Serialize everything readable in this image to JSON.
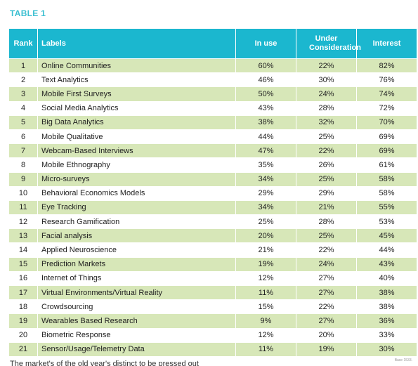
{
  "title": "TABLE 1",
  "footnote": "Base 1533.",
  "cutoff_text": "The market's of the old year's distinct to be pressed out",
  "colors": {
    "header": "#1bb7cf",
    "band": "#d7e7b8",
    "title": "#3bbfd1"
  },
  "chart_data": {
    "type": "table",
    "columns": [
      "Rank",
      "Labels",
      "In use",
      "Under Consideration",
      "Interest"
    ],
    "rows": [
      [
        "1",
        "Online Communities",
        "60%",
        "22%",
        "82%"
      ],
      [
        "2",
        "Text Analytics",
        "46%",
        "30%",
        "76%"
      ],
      [
        "3",
        "Mobile First Surveys",
        "50%",
        "24%",
        "74%"
      ],
      [
        "4",
        "Social Media Analytics",
        "43%",
        "28%",
        "72%"
      ],
      [
        "5",
        "Big Data Analytics",
        "38%",
        "32%",
        "70%"
      ],
      [
        "6",
        "Mobile Qualitative",
        "44%",
        "25%",
        "69%"
      ],
      [
        "7",
        "Webcam-Based Interviews",
        "47%",
        "22%",
        "69%"
      ],
      [
        "8",
        "Mobile Ethnography",
        "35%",
        "26%",
        "61%"
      ],
      [
        "9",
        "Micro-surveys",
        "34%",
        "25%",
        "58%"
      ],
      [
        "10",
        "Behavioral Economics Models",
        "29%",
        "29%",
        "58%"
      ],
      [
        "11",
        "Eye Tracking",
        "34%",
        "21%",
        "55%"
      ],
      [
        "12",
        "Research Gamification",
        "25%",
        "28%",
        "53%"
      ],
      [
        "13",
        "Facial analysis",
        "20%",
        "25%",
        "45%"
      ],
      [
        "14",
        "Applied Neuroscience",
        "21%",
        "22%",
        "44%"
      ],
      [
        "15",
        "Prediction Markets",
        "19%",
        "24%",
        "43%"
      ],
      [
        "16",
        "Internet of Things",
        "12%",
        "27%",
        "40%"
      ],
      [
        "17",
        "Virtual Environments/Virtual Reality",
        "11%",
        "27%",
        "38%"
      ],
      [
        "18",
        "Crowdsourcing",
        "15%",
        "22%",
        "38%"
      ],
      [
        "19",
        "Wearables Based Research",
        "9%",
        "27%",
        "36%"
      ],
      [
        "20",
        "Biometric Response",
        "12%",
        "20%",
        "33%"
      ],
      [
        "21",
        "Sensor/Usage/Telemetry Data",
        "11%",
        "19%",
        "30%"
      ]
    ]
  }
}
